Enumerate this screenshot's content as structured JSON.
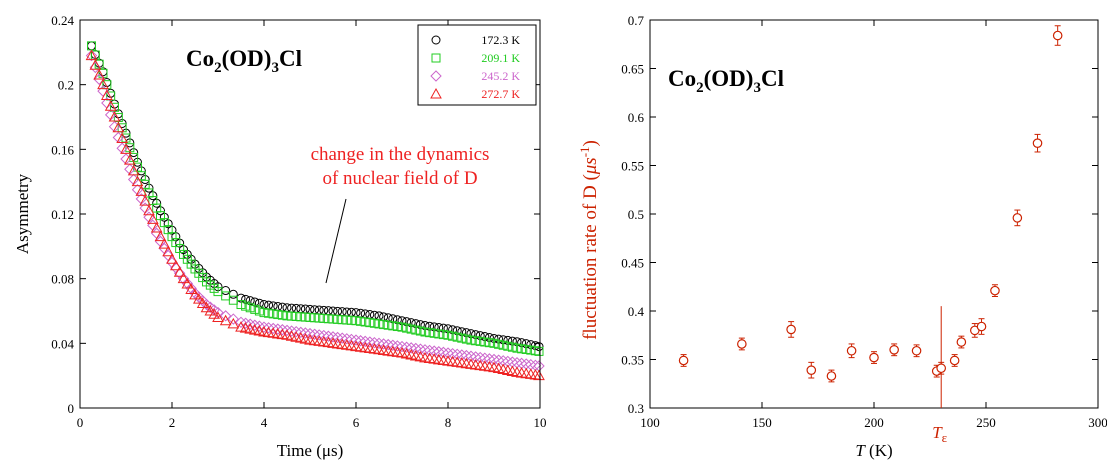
{
  "chart_data": [
    {
      "type": "scatter",
      "compound": {
        "base": "Co",
        "sub1": "2",
        "mid": "(OD)",
        "sub2": "3",
        "tail": "Cl"
      },
      "xlabel": "Time (μs)",
      "ylabel": "Asymmetry",
      "xlim": [
        0,
        10
      ],
      "ylim": [
        0,
        0.24
      ],
      "xticks": [
        "0",
        "2",
        "4",
        "6",
        "8",
        "10"
      ],
      "yticks": [
        "0",
        "0.04",
        "0.08",
        "0.12",
        "0.16",
        "0.2",
        "0.24"
      ],
      "legend": "top-right",
      "annotation": [
        "change in the dynamics",
        "of nuclear field of D"
      ],
      "series": [
        {
          "name": "172.3 K",
          "marker": "circle",
          "color": "#000000",
          "x": [
            0.25,
            0.5,
            0.75,
            1.0,
            1.25,
            1.5,
            1.75,
            2.0,
            2.25,
            2.5,
            2.75,
            3.0,
            3.5,
            4.0,
            4.5,
            5.0,
            5.5,
            6.0,
            6.5,
            7.0,
            7.5,
            8.0,
            8.5,
            9.0,
            9.5,
            10.0
          ],
          "y": [
            0.224,
            0.208,
            0.188,
            0.17,
            0.152,
            0.136,
            0.122,
            0.11,
            0.098,
            0.089,
            0.081,
            0.075,
            0.068,
            0.064,
            0.062,
            0.061,
            0.06,
            0.059,
            0.057,
            0.054,
            0.051,
            0.049,
            0.046,
            0.043,
            0.041,
            0.038
          ]
        },
        {
          "name": "209.1 K",
          "marker": "square",
          "color": "#22cc22",
          "x": [
            0.25,
            0.5,
            0.75,
            1.0,
            1.25,
            1.5,
            1.75,
            2.0,
            2.25,
            2.5,
            2.75,
            3.0,
            3.5,
            4.0,
            4.5,
            5.0,
            5.5,
            6.0,
            6.5,
            7.0,
            7.5,
            8.0,
            8.5,
            9.0,
            9.5,
            10.0
          ],
          "y": [
            0.224,
            0.207,
            0.186,
            0.167,
            0.149,
            0.133,
            0.119,
            0.106,
            0.095,
            0.086,
            0.078,
            0.072,
            0.064,
            0.059,
            0.057,
            0.056,
            0.055,
            0.054,
            0.052,
            0.05,
            0.047,
            0.045,
            0.042,
            0.04,
            0.037,
            0.035
          ]
        },
        {
          "name": "245.2 K",
          "marker": "diamond",
          "color": "#cc66cc",
          "x": [
            0.25,
            0.5,
            0.75,
            1.0,
            1.25,
            1.5,
            1.75,
            2.0,
            2.25,
            2.5,
            2.75,
            3.0,
            3.5,
            4.0,
            4.5,
            5.0,
            5.5,
            6.0,
            6.5,
            7.0,
            7.5,
            8.0,
            8.5,
            9.0,
            9.5,
            10.0
          ],
          "y": [
            0.218,
            0.196,
            0.174,
            0.154,
            0.135,
            0.118,
            0.103,
            0.09,
            0.08,
            0.071,
            0.064,
            0.059,
            0.053,
            0.05,
            0.048,
            0.046,
            0.044,
            0.042,
            0.04,
            0.038,
            0.036,
            0.034,
            0.032,
            0.03,
            0.028,
            0.026
          ]
        },
        {
          "name": "272.7 K",
          "marker": "triangle",
          "color": "#ee2222",
          "x": [
            0.25,
            0.5,
            0.75,
            1.0,
            1.25,
            1.5,
            1.75,
            2.0,
            2.25,
            2.5,
            2.75,
            3.0,
            3.5,
            4.0,
            4.5,
            5.0,
            5.5,
            6.0,
            6.5,
            7.0,
            7.5,
            8.0,
            8.5,
            9.0,
            9.5,
            10.0
          ],
          "y": [
            0.218,
            0.2,
            0.18,
            0.16,
            0.14,
            0.122,
            0.106,
            0.092,
            0.08,
            0.07,
            0.062,
            0.056,
            0.05,
            0.047,
            0.045,
            0.042,
            0.04,
            0.038,
            0.036,
            0.034,
            0.031,
            0.029,
            0.027,
            0.025,
            0.022,
            0.02
          ]
        }
      ]
    },
    {
      "type": "scatter",
      "compound": {
        "base": "Co",
        "sub1": "2",
        "mid": "(OD)",
        "sub2": "3",
        "tail": "Cl"
      },
      "xlabel": {
        "italic": "T",
        "rest": " (K)"
      },
      "ylabel": {
        "text": "fluctuation rate of D  (",
        "unit": "μs",
        "sup": "-1",
        "close": ")"
      },
      "xlim": [
        100,
        300
      ],
      "ylim": [
        0.3,
        0.7
      ],
      "xticks": [
        "100",
        "150",
        "200",
        "250",
        "300"
      ],
      "yticks": [
        "0.3",
        "0.35",
        "0.4",
        "0.45",
        "0.5",
        "0.55",
        "0.6",
        "0.65",
        "0.7"
      ],
      "marker_line": {
        "x": 230,
        "ymin": 0.3,
        "ymax": 0.405,
        "label_main": "T",
        "label_sub": "ε"
      },
      "color": "#cc2200",
      "points": [
        {
          "x": 115,
          "y": 0.349,
          "err": 0.004
        },
        {
          "x": 141,
          "y": 0.366,
          "err": 0.004
        },
        {
          "x": 163,
          "y": 0.381,
          "err": 0.006
        },
        {
          "x": 172,
          "y": 0.339,
          "err": 0.006
        },
        {
          "x": 181,
          "y": 0.333,
          "err": 0.004
        },
        {
          "x": 190,
          "y": 0.359,
          "err": 0.005
        },
        {
          "x": 200,
          "y": 0.352,
          "err": 0.004
        },
        {
          "x": 209,
          "y": 0.36,
          "err": 0.004
        },
        {
          "x": 219,
          "y": 0.359,
          "err": 0.004
        },
        {
          "x": 228,
          "y": 0.338,
          "err": 0.004
        },
        {
          "x": 230,
          "y": 0.341,
          "err": 0.004
        },
        {
          "x": 236,
          "y": 0.349,
          "err": 0.004
        },
        {
          "x": 239,
          "y": 0.368,
          "err": 0.004
        },
        {
          "x": 245,
          "y": 0.38,
          "err": 0.005
        },
        {
          "x": 248,
          "y": 0.384,
          "err": 0.006
        },
        {
          "x": 254,
          "y": 0.421,
          "err": 0.004
        },
        {
          "x": 264,
          "y": 0.496,
          "err": 0.006
        },
        {
          "x": 273,
          "y": 0.573,
          "err": 0.007
        },
        {
          "x": 282,
          "y": 0.684,
          "err": 0.008
        }
      ]
    }
  ]
}
